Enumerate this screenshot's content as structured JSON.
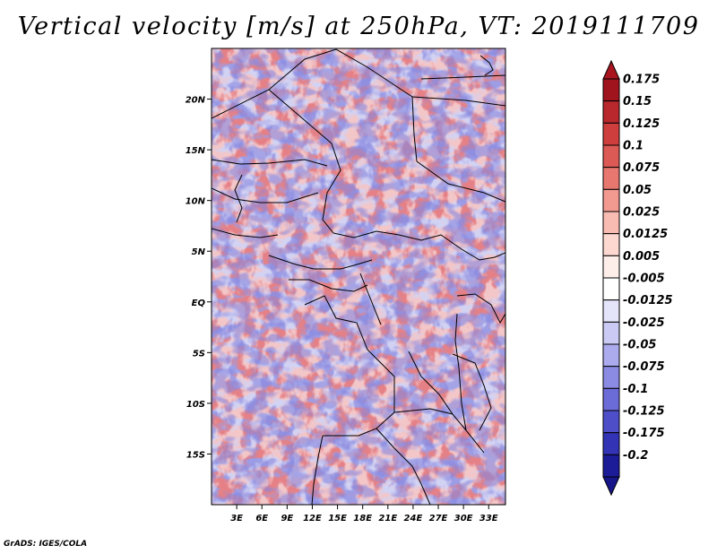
{
  "title": "Vertical velocity [m/s] at 250hPa, VT: 2019111709",
  "credit": "GrADS: IGES/COLA",
  "map": {
    "lon_range": [
      0,
      35
    ],
    "lat_range": [
      -20,
      25
    ],
    "background_color": "#9d9de6",
    "x_ticks": [
      {
        "lon": 3,
        "label": "3E"
      },
      {
        "lon": 6,
        "label": "6E"
      },
      {
        "lon": 9,
        "label": "9E"
      },
      {
        "lon": 12,
        "label": "12E"
      },
      {
        "lon": 15,
        "label": "15E"
      },
      {
        "lon": 18,
        "label": "18E"
      },
      {
        "lon": 21,
        "label": "21E"
      },
      {
        "lon": 24,
        "label": "24E"
      },
      {
        "lon": 27,
        "label": "27E"
      },
      {
        "lon": 30,
        "label": "30E"
      },
      {
        "lon": 33,
        "label": "33E"
      }
    ],
    "y_ticks": [
      {
        "lat": 20,
        "label": "20N"
      },
      {
        "lat": 15,
        "label": "15N"
      },
      {
        "lat": 10,
        "label": "10N"
      },
      {
        "lat": 5,
        "label": "5N"
      },
      {
        "lat": 0,
        "label": "EQ"
      },
      {
        "lat": -5,
        "label": "5S"
      },
      {
        "lat": -10,
        "label": "10S"
      },
      {
        "lat": -15,
        "label": "15S"
      }
    ]
  },
  "colorbar": {
    "levels": [
      {
        "label": "0.175",
        "color": "#a0141e"
      },
      {
        "label": "0.15",
        "color": "#b8282d"
      },
      {
        "label": "0.125",
        "color": "#cd3e3d"
      },
      {
        "label": "0.1",
        "color": "#dc5a55"
      },
      {
        "label": "0.075",
        "color": "#e8786f"
      },
      {
        "label": "0.05",
        "color": "#f29a90"
      },
      {
        "label": "0.025",
        "color": "#f8bcb3"
      },
      {
        "label": "0.0125",
        "color": "#fcd8d1"
      },
      {
        "label": "0.005",
        "color": "#fdeeea"
      },
      {
        "label": "-0.005",
        "color": "#ffffff"
      },
      {
        "label": "-0.0125",
        "color": "#e4e4fa"
      },
      {
        "label": "-0.025",
        "color": "#cacaf5"
      },
      {
        "label": "-0.05",
        "color": "#ababee"
      },
      {
        "label": "-0.075",
        "color": "#8b8be4"
      },
      {
        "label": "-0.1",
        "color": "#6c6cd8"
      },
      {
        "label": "-0.125",
        "color": "#4e4ec9"
      },
      {
        "label": "-0.175",
        "color": "#3333b5"
      },
      {
        "label": "-0.2",
        "color": "#1c1c98"
      }
    ],
    "top_color": "#a8151f",
    "bottom_color": "#16168a"
  }
}
